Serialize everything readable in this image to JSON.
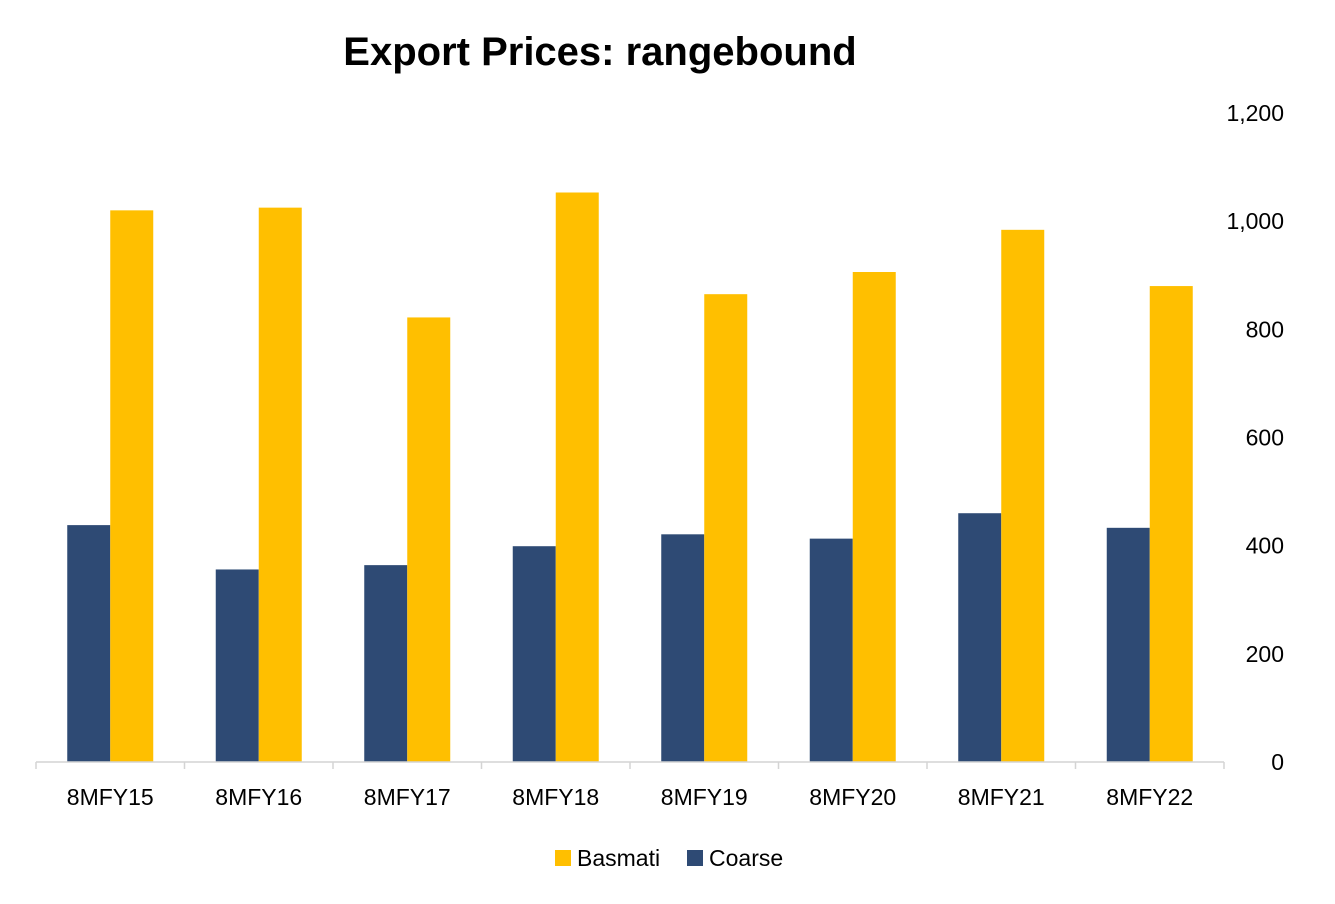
{
  "chart_data": {
    "type": "bar",
    "title": "Export Prices: rangebound",
    "categories": [
      "8MFY15",
      "8MFY16",
      "8MFY17",
      "8MFY18",
      "8MFY19",
      "8MFY20",
      "8MFY21",
      "8MFY22"
    ],
    "series": [
      {
        "name": "Coarse",
        "color": "#2e4a74",
        "values": [
          438,
          356,
          364,
          399,
          421,
          413,
          460,
          433
        ]
      },
      {
        "name": "Basmati",
        "color": "#ffbf00",
        "values": [
          1020,
          1025,
          822,
          1053,
          865,
          906,
          984,
          880
        ]
      }
    ],
    "yaxis": {
      "position": "right",
      "ylim": [
        0,
        1200
      ],
      "ticks": [
        0,
        200,
        400,
        600,
        800,
        1000,
        1200
      ],
      "tick_labels": [
        "0",
        "200",
        "400",
        "600",
        "800",
        "1,000",
        "1,200"
      ]
    },
    "xlabel": "",
    "ylabel": "",
    "grid": false,
    "legend": {
      "placement": "bottom-center",
      "entries": [
        "Basmati",
        "Coarse"
      ]
    }
  }
}
